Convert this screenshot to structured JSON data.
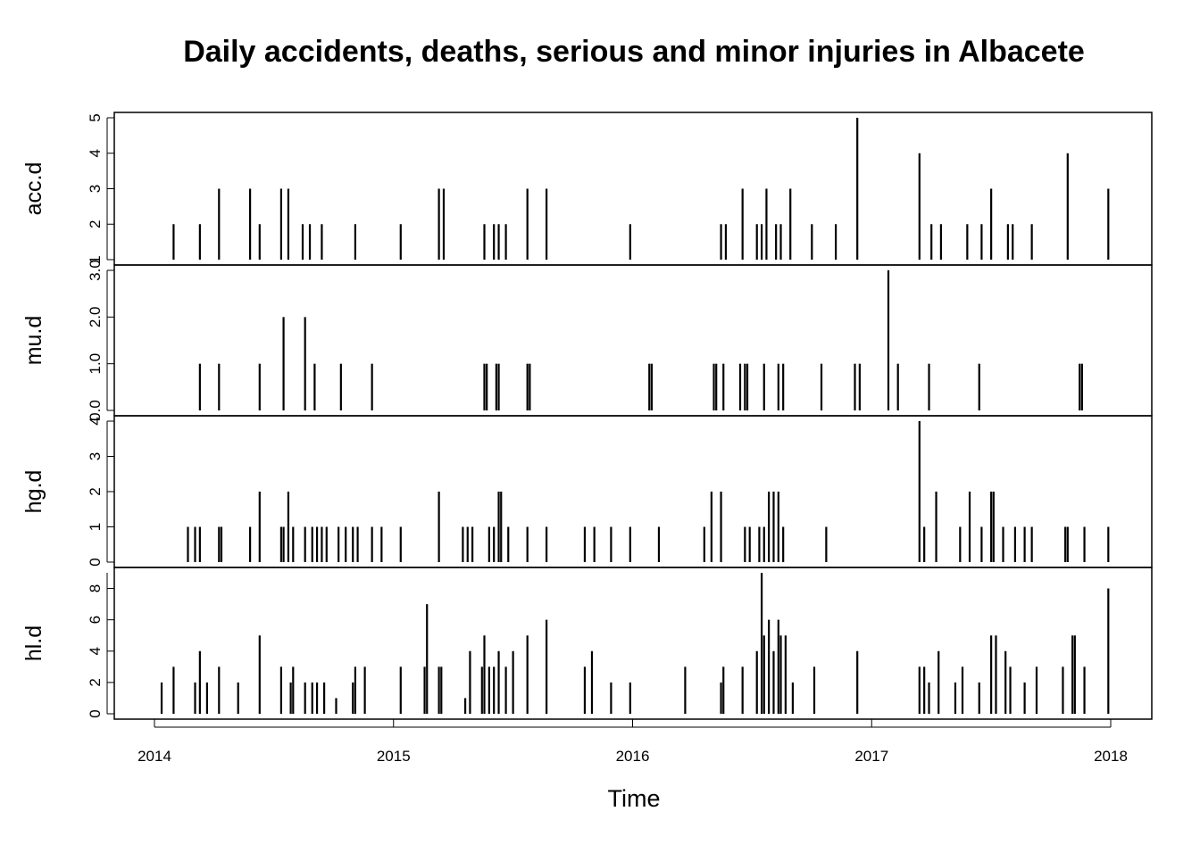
{
  "chart_data": {
    "type": "line",
    "title": "Daily accidents, deaths, serious and minor injuries in Albacete",
    "xlabel": "Time",
    "x_range": [
      2014,
      2018
    ],
    "x_ticks": [
      "2014",
      "2015",
      "2016",
      "2017",
      "2018"
    ],
    "style": "type=h vertical spikes, stacked panels sharing time axis",
    "panels": [
      {
        "name": "acc.d",
        "ylim": [
          1,
          5
        ],
        "y_ticks": [
          "1",
          "2",
          "3",
          "4",
          "5"
        ],
        "points": [
          [
            2014.08,
            2
          ],
          [
            2014.19,
            2
          ],
          [
            2014.27,
            3
          ],
          [
            2014.4,
            3
          ],
          [
            2014.44,
            2
          ],
          [
            2014.53,
            3
          ],
          [
            2014.56,
            3
          ],
          [
            2014.62,
            2
          ],
          [
            2014.65,
            2
          ],
          [
            2014.7,
            2
          ],
          [
            2014.84,
            2
          ],
          [
            2015.03,
            2
          ],
          [
            2015.19,
            3
          ],
          [
            2015.21,
            3
          ],
          [
            2015.38,
            2
          ],
          [
            2015.42,
            2
          ],
          [
            2015.44,
            2
          ],
          [
            2015.47,
            2
          ],
          [
            2015.56,
            3
          ],
          [
            2015.64,
            3
          ],
          [
            2015.99,
            2
          ],
          [
            2016.37,
            2
          ],
          [
            2016.39,
            2
          ],
          [
            2016.46,
            3
          ],
          [
            2016.52,
            2
          ],
          [
            2016.54,
            2
          ],
          [
            2016.56,
            3
          ],
          [
            2016.6,
            2
          ],
          [
            2016.62,
            2
          ],
          [
            2016.66,
            3
          ],
          [
            2016.75,
            2
          ],
          [
            2016.85,
            2
          ],
          [
            2016.94,
            5
          ],
          [
            2017.2,
            4
          ],
          [
            2017.25,
            2
          ],
          [
            2017.29,
            2
          ],
          [
            2017.4,
            2
          ],
          [
            2017.46,
            2
          ],
          [
            2017.5,
            3
          ],
          [
            2017.57,
            2
          ],
          [
            2017.59,
            2
          ],
          [
            2017.67,
            2
          ],
          [
            2017.82,
            4
          ],
          [
            2017.99,
            3
          ]
        ]
      },
      {
        "name": "mu.d",
        "ylim": [
          0,
          3
        ],
        "y_ticks": [
          "0.0",
          "1.0",
          "2.0",
          "3.0"
        ],
        "points": [
          [
            2014.19,
            1
          ],
          [
            2014.27,
            1
          ],
          [
            2014.44,
            1
          ],
          [
            2014.54,
            2
          ],
          [
            2014.63,
            2
          ],
          [
            2014.67,
            1
          ],
          [
            2014.78,
            1
          ],
          [
            2014.91,
            1
          ],
          [
            2015.38,
            1
          ],
          [
            2015.39,
            1
          ],
          [
            2015.43,
            1
          ],
          [
            2015.44,
            1
          ],
          [
            2015.56,
            1
          ],
          [
            2015.57,
            1
          ],
          [
            2016.07,
            1
          ],
          [
            2016.08,
            1
          ],
          [
            2016.34,
            1
          ],
          [
            2016.35,
            1
          ],
          [
            2016.38,
            1
          ],
          [
            2016.45,
            1
          ],
          [
            2016.47,
            1
          ],
          [
            2016.48,
            1
          ],
          [
            2016.55,
            1
          ],
          [
            2016.61,
            1
          ],
          [
            2016.63,
            1
          ],
          [
            2016.79,
            1
          ],
          [
            2016.93,
            1
          ],
          [
            2016.95,
            1
          ],
          [
            2017.07,
            3
          ],
          [
            2017.11,
            1
          ],
          [
            2017.24,
            1
          ],
          [
            2017.45,
            1
          ],
          [
            2017.87,
            1
          ],
          [
            2017.88,
            1
          ]
        ]
      },
      {
        "name": "hg.d",
        "ylim": [
          0,
          4
        ],
        "y_ticks": [
          "0",
          "1",
          "2",
          "3",
          "4"
        ],
        "points": [
          [
            2014.14,
            1
          ],
          [
            2014.17,
            1
          ],
          [
            2014.19,
            1
          ],
          [
            2014.27,
            1
          ],
          [
            2014.28,
            1
          ],
          [
            2014.4,
            1
          ],
          [
            2014.44,
            2
          ],
          [
            2014.53,
            1
          ],
          [
            2014.54,
            1
          ],
          [
            2014.56,
            2
          ],
          [
            2014.58,
            1
          ],
          [
            2014.63,
            1
          ],
          [
            2014.66,
            1
          ],
          [
            2014.68,
            1
          ],
          [
            2014.7,
            1
          ],
          [
            2014.72,
            1
          ],
          [
            2014.77,
            1
          ],
          [
            2014.8,
            1
          ],
          [
            2014.83,
            1
          ],
          [
            2014.85,
            1
          ],
          [
            2014.91,
            1
          ],
          [
            2014.95,
            1
          ],
          [
            2015.03,
            1
          ],
          [
            2015.19,
            2
          ],
          [
            2015.29,
            1
          ],
          [
            2015.31,
            1
          ],
          [
            2015.33,
            1
          ],
          [
            2015.4,
            1
          ],
          [
            2015.42,
            1
          ],
          [
            2015.44,
            2
          ],
          [
            2015.45,
            2
          ],
          [
            2015.48,
            1
          ],
          [
            2015.56,
            1
          ],
          [
            2015.64,
            1
          ],
          [
            2015.8,
            1
          ],
          [
            2015.84,
            1
          ],
          [
            2015.91,
            1
          ],
          [
            2015.99,
            1
          ],
          [
            2016.11,
            1
          ],
          [
            2016.3,
            1
          ],
          [
            2016.33,
            2
          ],
          [
            2016.37,
            2
          ],
          [
            2016.47,
            1
          ],
          [
            2016.49,
            1
          ],
          [
            2016.53,
            1
          ],
          [
            2016.55,
            1
          ],
          [
            2016.57,
            2
          ],
          [
            2016.59,
            2
          ],
          [
            2016.61,
            2
          ],
          [
            2016.63,
            1
          ],
          [
            2016.81,
            1
          ],
          [
            2017.2,
            4
          ],
          [
            2017.22,
            1
          ],
          [
            2017.27,
            2
          ],
          [
            2017.37,
            1
          ],
          [
            2017.41,
            2
          ],
          [
            2017.46,
            1
          ],
          [
            2017.5,
            2
          ],
          [
            2017.51,
            2
          ],
          [
            2017.55,
            1
          ],
          [
            2017.6,
            1
          ],
          [
            2017.64,
            1
          ],
          [
            2017.67,
            1
          ],
          [
            2017.81,
            1
          ],
          [
            2017.82,
            1
          ],
          [
            2017.89,
            1
          ],
          [
            2017.99,
            1
          ]
        ]
      },
      {
        "name": "hl.d",
        "ylim": [
          0,
          9
        ],
        "y_ticks": [
          "0",
          "2",
          "4",
          "6",
          "8"
        ],
        "points": [
          [
            2014.03,
            2
          ],
          [
            2014.08,
            3
          ],
          [
            2014.17,
            2
          ],
          [
            2014.19,
            4
          ],
          [
            2014.22,
            2
          ],
          [
            2014.27,
            3
          ],
          [
            2014.35,
            2
          ],
          [
            2014.44,
            5
          ],
          [
            2014.53,
            3
          ],
          [
            2014.57,
            2
          ],
          [
            2014.58,
            3
          ],
          [
            2014.63,
            2
          ],
          [
            2014.66,
            2
          ],
          [
            2014.68,
            2
          ],
          [
            2014.71,
            2
          ],
          [
            2014.76,
            1
          ],
          [
            2014.83,
            2
          ],
          [
            2014.84,
            3
          ],
          [
            2014.88,
            3
          ],
          [
            2015.03,
            3
          ],
          [
            2015.13,
            3
          ],
          [
            2015.14,
            7
          ],
          [
            2015.19,
            3
          ],
          [
            2015.2,
            3
          ],
          [
            2015.3,
            1
          ],
          [
            2015.32,
            4
          ],
          [
            2015.37,
            3
          ],
          [
            2015.38,
            5
          ],
          [
            2015.4,
            3
          ],
          [
            2015.42,
            3
          ],
          [
            2015.44,
            4
          ],
          [
            2015.47,
            3
          ],
          [
            2015.5,
            4
          ],
          [
            2015.56,
            5
          ],
          [
            2015.64,
            6
          ],
          [
            2015.8,
            3
          ],
          [
            2015.83,
            4
          ],
          [
            2015.91,
            2
          ],
          [
            2015.99,
            2
          ],
          [
            2016.22,
            3
          ],
          [
            2016.37,
            2
          ],
          [
            2016.38,
            3
          ],
          [
            2016.46,
            3
          ],
          [
            2016.52,
            4
          ],
          [
            2016.54,
            9
          ],
          [
            2016.55,
            5
          ],
          [
            2016.57,
            6
          ],
          [
            2016.59,
            4
          ],
          [
            2016.61,
            6
          ],
          [
            2016.62,
            5
          ],
          [
            2016.64,
            5
          ],
          [
            2016.67,
            2
          ],
          [
            2016.76,
            3
          ],
          [
            2016.94,
            4
          ],
          [
            2017.2,
            3
          ],
          [
            2017.22,
            3
          ],
          [
            2017.24,
            2
          ],
          [
            2017.28,
            4
          ],
          [
            2017.35,
            2
          ],
          [
            2017.38,
            3
          ],
          [
            2017.45,
            2
          ],
          [
            2017.5,
            5
          ],
          [
            2017.52,
            5
          ],
          [
            2017.56,
            4
          ],
          [
            2017.58,
            3
          ],
          [
            2017.64,
            2
          ],
          [
            2017.69,
            3
          ],
          [
            2017.8,
            3
          ],
          [
            2017.84,
            5
          ],
          [
            2017.85,
            5
          ],
          [
            2017.89,
            3
          ],
          [
            2017.99,
            8
          ]
        ]
      }
    ]
  }
}
